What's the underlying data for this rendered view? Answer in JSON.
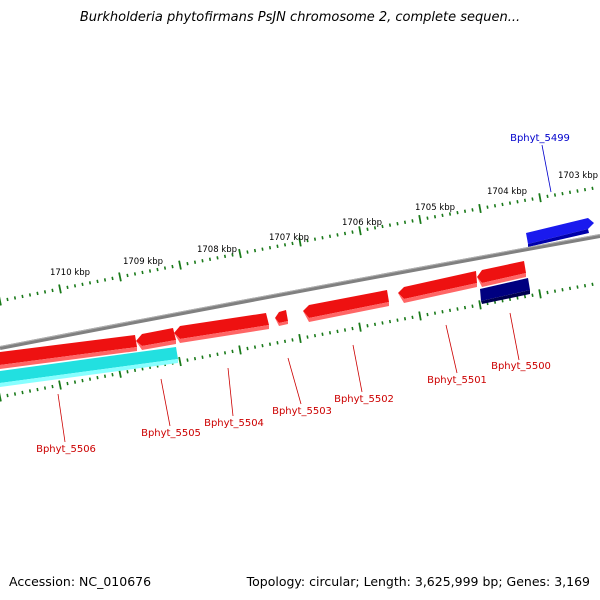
{
  "title": "Burkholderia phytofirmans PsJN chromosome 2, complete sequen...",
  "footer": {
    "accession": "Accession: NC_010676",
    "info": "Topology: circular; Length: 3,625,999 bp; Genes: 3,169"
  },
  "colors": {
    "forward_gene": "#ee1111",
    "forward_gene_selected": "#1a1aee",
    "reverse_gene": "#dd0000",
    "reverse_gene_dark": "#000080",
    "reverse_gene_cyan": "#22e0e0",
    "backbone": "#808080",
    "ticks": "#1a7a1a",
    "label_red": "#cc0000",
    "label_blue": "#0000cc"
  },
  "kbp_labels": [
    "1710 kbp",
    "1709 kbp",
    "1708 kbp",
    "1707 kbp",
    "1706 kbp",
    "1705 kbp",
    "1704 kbp",
    "1703 kbp"
  ],
  "genes": [
    {
      "name": "Bphyt_5499",
      "strand": "forward",
      "color": "blue"
    },
    {
      "name": "Bphyt_5500",
      "strand": "reverse",
      "color": "navy"
    },
    {
      "name": "Bphyt_5501",
      "strand": "reverse",
      "color": "red"
    },
    {
      "name": "Bphyt_5502",
      "strand": "reverse",
      "color": "red"
    },
    {
      "name": "Bphyt_5503",
      "strand": "reverse",
      "color": "red"
    },
    {
      "name": "Bphyt_5504",
      "strand": "reverse",
      "color": "red"
    },
    {
      "name": "Bphyt_5505",
      "strand": "reverse",
      "color": "red"
    },
    {
      "name": "Bphyt_5506",
      "strand": "reverse",
      "color": "cyan"
    }
  ]
}
